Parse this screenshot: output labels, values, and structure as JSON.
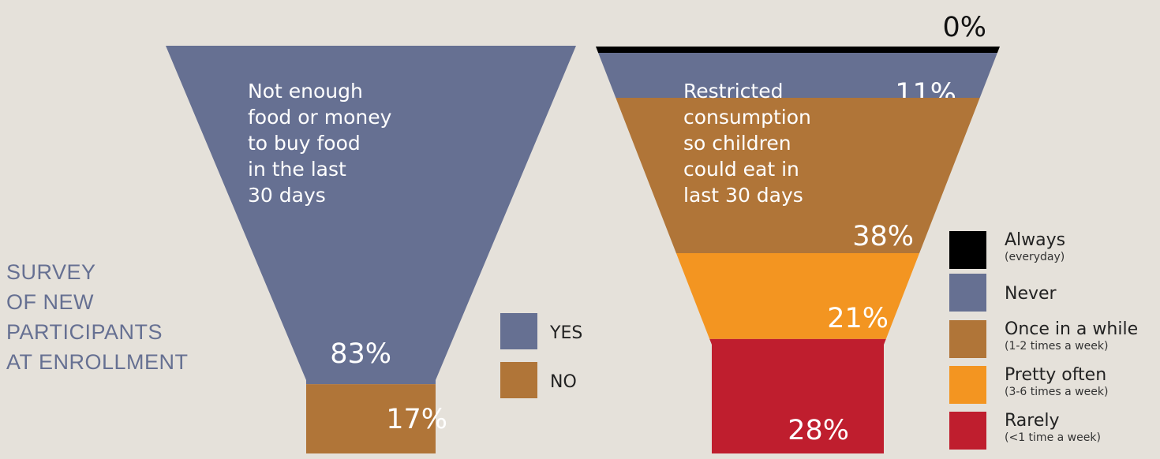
{
  "title_lines": [
    "SURVEY",
    "OF NEW",
    "PARTICIPANTS",
    "AT ENROLLMENT"
  ],
  "colors": {
    "background": "#e5e1da",
    "yes": "#667092",
    "no": "#b07538",
    "always": "#000000",
    "never": "#667092",
    "once": "#b07538",
    "pretty": "#f39521",
    "rarely": "#bf1e2e",
    "title": "#667092"
  },
  "chart_data": [
    {
      "type": "funnel",
      "title_lines": [
        "Not enough",
        "food or money",
        "to buy food",
        "in the last",
        "30 days"
      ],
      "series": [
        {
          "name": "YES",
          "value": 83,
          "label": "83%"
        },
        {
          "name": "NO",
          "value": 17,
          "label": "17%"
        }
      ],
      "legend": [
        {
          "name": "YES",
          "sub": ""
        },
        {
          "name": "NO",
          "sub": ""
        }
      ]
    },
    {
      "type": "funnel",
      "title_lines": [
        "Restricted",
        "consumption",
        "so children",
        "could eat in",
        "last 30 days"
      ],
      "series": [
        {
          "name": "Always",
          "value": 0,
          "label": "0%"
        },
        {
          "name": "Never",
          "value": 11,
          "label": "11%"
        },
        {
          "name": "Once in a while",
          "value": 38,
          "label": "38%"
        },
        {
          "name": "Pretty often",
          "value": 21,
          "label": "21%"
        },
        {
          "name": "Rarely",
          "value": 28,
          "label": "28%"
        }
      ],
      "legend": [
        {
          "name": "Always",
          "sub": "(everyday)"
        },
        {
          "name": "Never",
          "sub": ""
        },
        {
          "name": "Once in a while",
          "sub": "(1-2 times a week)"
        },
        {
          "name": "Pretty often",
          "sub": "(3-6 times a week)"
        },
        {
          "name": "Rarely",
          "sub": "(<1 time a week)"
        }
      ]
    }
  ]
}
